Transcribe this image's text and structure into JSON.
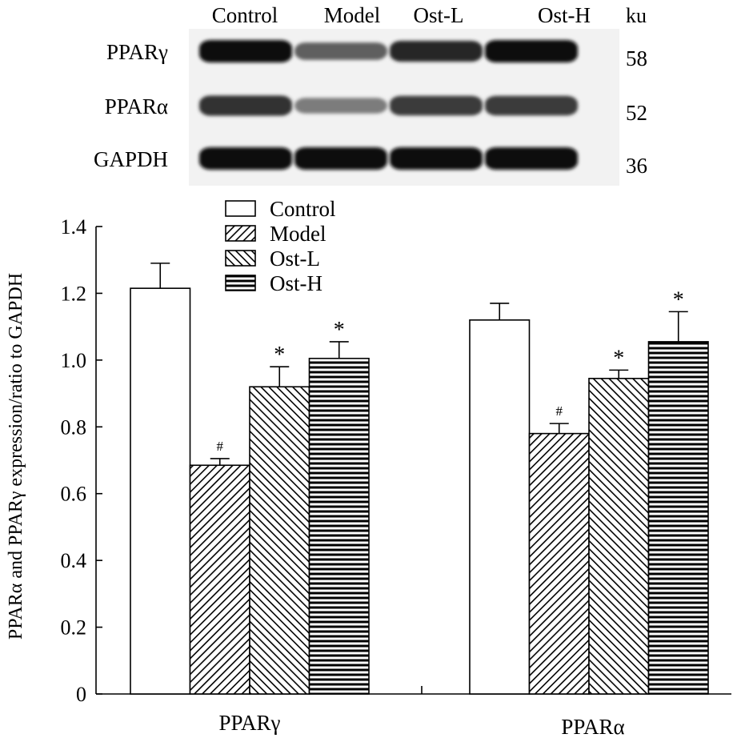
{
  "blot": {
    "lanes": [
      "Control",
      "Model",
      "Ost-L",
      "Ost-H"
    ],
    "unit": "ku",
    "rows": [
      {
        "protein": "PPARγ",
        "kda": "58",
        "intensity": [
          1.0,
          0.55,
          0.85,
          1.0
        ]
      },
      {
        "protein": "PPARα",
        "kda": "52",
        "intensity": [
          0.8,
          0.4,
          0.75,
          0.75
        ]
      },
      {
        "protein": "GAPDH",
        "kda": "36",
        "intensity": [
          1.0,
          1.0,
          1.0,
          1.0
        ]
      }
    ]
  },
  "chart_data": {
    "type": "bar",
    "categories": [
      "PPARγ",
      "PPARα"
    ],
    "ylabel": "PPARα and PPARγ expression/ratio to GAPDH",
    "xlabel": "",
    "ylim": [
      0,
      1.4
    ],
    "yticks": [
      "0",
      "0.2",
      "0.4",
      "0.6",
      "0.8",
      "1.0",
      "1.2",
      "1.4"
    ],
    "legend_position": "top-center",
    "series": [
      {
        "name": "Control",
        "pattern": "open",
        "values": [
          1.215,
          1.12
        ],
        "errors": [
          0.075,
          0.05
        ],
        "marks": [
          "",
          ""
        ]
      },
      {
        "name": "Model",
        "pattern": "backward-hatch",
        "values": [
          0.685,
          0.78
        ],
        "errors": [
          0.02,
          0.03
        ],
        "marks": [
          "#",
          "#"
        ]
      },
      {
        "name": "Ost-L",
        "pattern": "forward-hatch",
        "values": [
          0.92,
          0.945
        ],
        "errors": [
          0.06,
          0.025
        ],
        "marks": [
          "*",
          "*"
        ]
      },
      {
        "name": "Ost-H",
        "pattern": "horizontal-lines",
        "values": [
          1.005,
          1.055
        ],
        "errors": [
          0.05,
          0.09
        ],
        "marks": [
          "*",
          "*"
        ]
      }
    ]
  }
}
